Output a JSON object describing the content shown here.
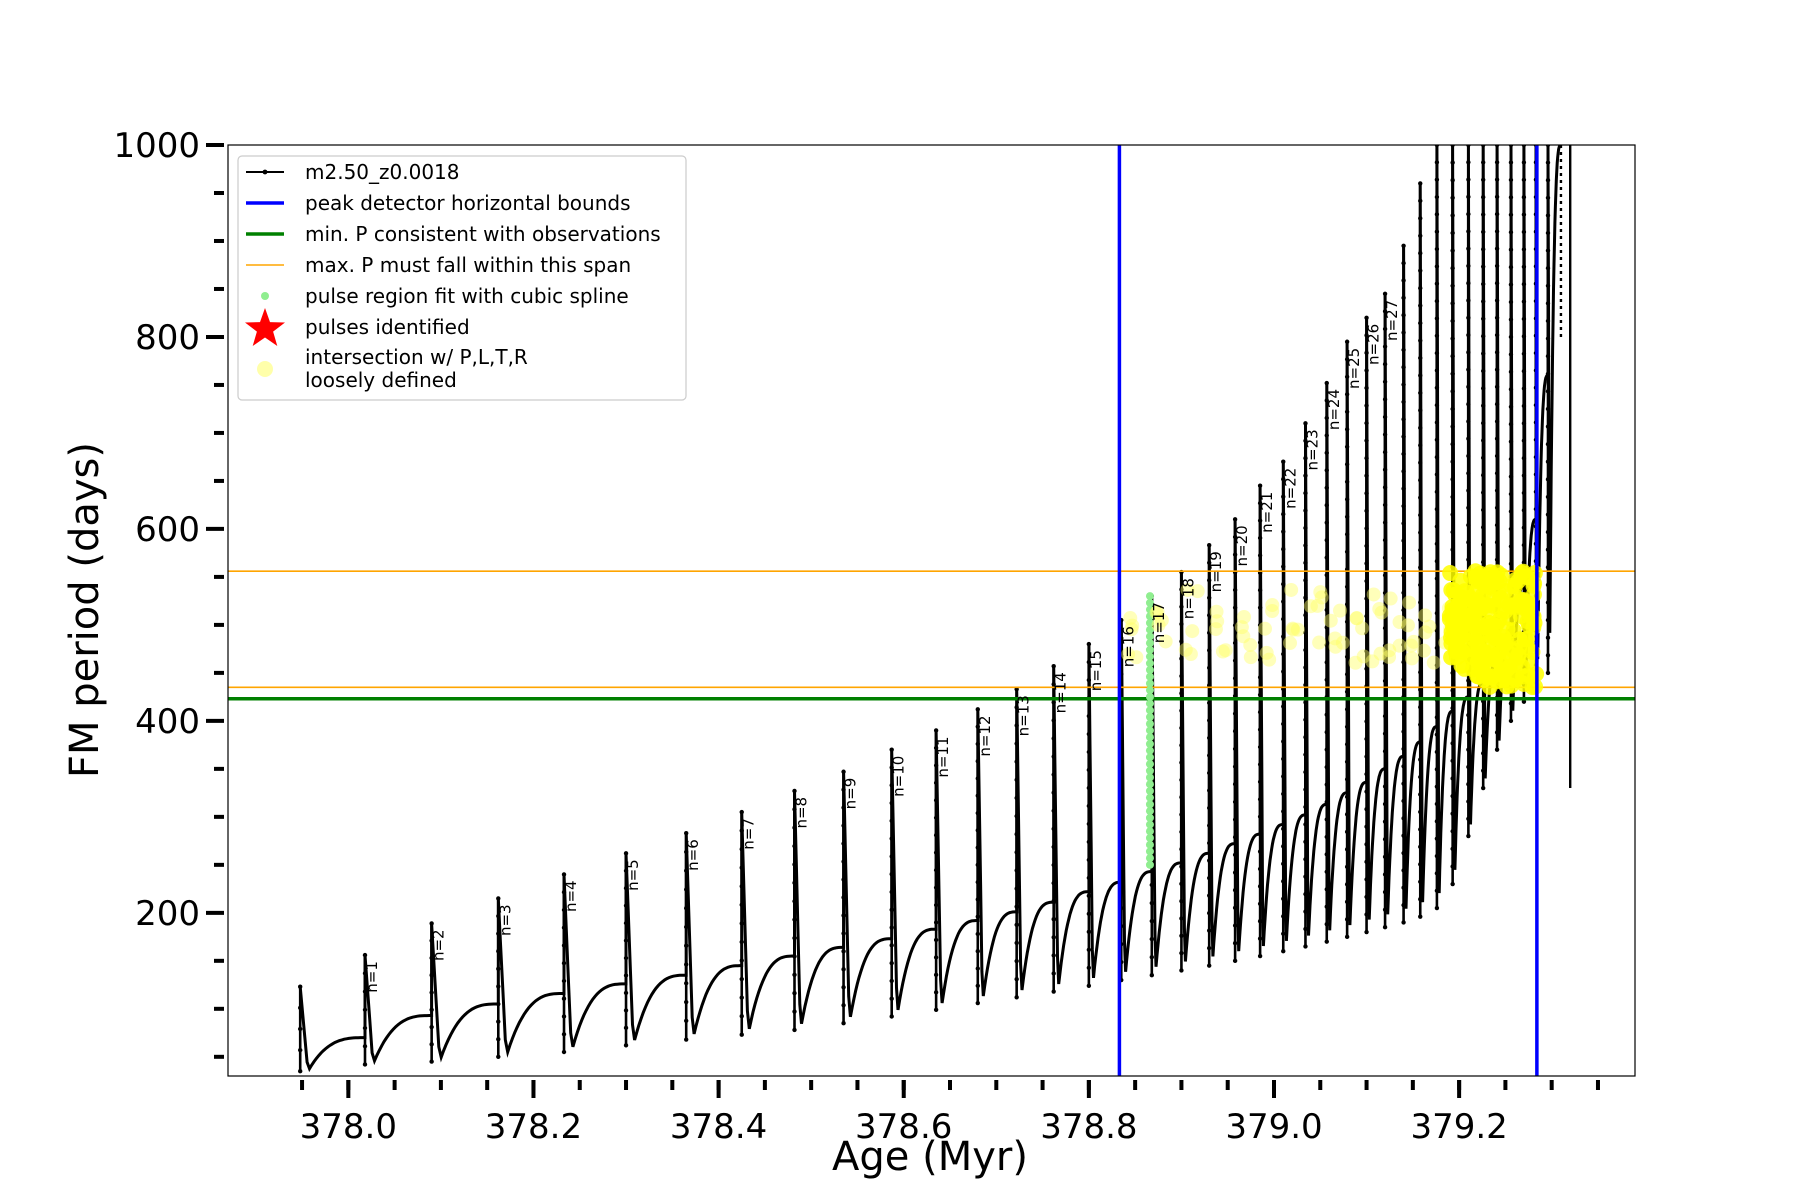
{
  "chart_data": {
    "type": "line",
    "xlabel": "Age (Myr)",
    "ylabel": "FM period (days)",
    "xlim": [
      377.87,
      379.39
    ],
    "ylim": [
      30,
      1000
    ],
    "xticks": [
      {
        "value": 378.0,
        "label": "378.0"
      },
      {
        "value": 378.2,
        "label": "378.2"
      },
      {
        "value": 378.4,
        "label": "378.4"
      },
      {
        "value": 378.6,
        "label": "378.6"
      },
      {
        "value": 378.8,
        "label": "378.8"
      },
      {
        "value": 379.0,
        "label": "379.0"
      },
      {
        "value": 379.2,
        "label": "379.2"
      }
    ],
    "yticks": [
      {
        "value": 200,
        "label": "200"
      },
      {
        "value": 400,
        "label": "400"
      },
      {
        "value": 600,
        "label": "600"
      },
      {
        "value": 800,
        "label": "800"
      },
      {
        "value": 1000,
        "label": "1000"
      }
    ],
    "grid": false,
    "legend_position": "top-left",
    "legend": [
      {
        "label": "m2.50_z0.0018",
        "kind": "line-marker",
        "color": "#000000"
      },
      {
        "label": "peak detector horizontal bounds",
        "kind": "line",
        "color": "#0000ff"
      },
      {
        "label": "min. P consistent with observations",
        "kind": "line",
        "color": "#008000"
      },
      {
        "label": "max. P must fall within this span",
        "kind": "thin-line",
        "color": "#ffa500"
      },
      {
        "label": "pulse region fit with cubic spline",
        "kind": "dot",
        "color": "#90ee90"
      },
      {
        "label": "pulses identified",
        "kind": "star",
        "color": "#ff0000"
      },
      {
        "label": "intersection w/ P,L,T,R",
        "label2": "loosely defined",
        "kind": "circle",
        "color": "#ffffaa"
      }
    ],
    "series": [
      {
        "name": "m2.50_z0.0018",
        "color": "#000000",
        "pulses": [
          {
            "age": 377.948,
            "peak": 123,
            "min": 35,
            "end": 70
          },
          {
            "age": 378.018,
            "peak": 156,
            "min": 42,
            "end": 93
          },
          {
            "age": 378.09,
            "peak": 189,
            "min": 45,
            "end": 105
          },
          {
            "age": 378.162,
            "peak": 215,
            "min": 50,
            "end": 116
          },
          {
            "age": 378.233,
            "peak": 240,
            "min": 55,
            "end": 126
          },
          {
            "age": 378.3,
            "peak": 262,
            "min": 62,
            "end": 135
          },
          {
            "age": 378.365,
            "peak": 283,
            "min": 68,
            "end": 145
          },
          {
            "age": 378.425,
            "peak": 305,
            "min": 73,
            "end": 155
          },
          {
            "age": 378.482,
            "peak": 327,
            "min": 78,
            "end": 164
          },
          {
            "age": 378.535,
            "peak": 347,
            "min": 85,
            "end": 173
          },
          {
            "age": 378.587,
            "peak": 370,
            "min": 92,
            "end": 183
          },
          {
            "age": 378.635,
            "peak": 390,
            "min": 99,
            "end": 192
          },
          {
            "age": 378.68,
            "peak": 412,
            "min": 106,
            "end": 201
          },
          {
            "age": 378.722,
            "peak": 433,
            "min": 112,
            "end": 211
          },
          {
            "age": 378.762,
            "peak": 457,
            "min": 118,
            "end": 222
          },
          {
            "age": 378.8,
            "peak": 480,
            "min": 124,
            "end": 232
          },
          {
            "age": 378.835,
            "peak": 505,
            "min": 130,
            "end": 243
          },
          {
            "age": 378.868,
            "peak": 530,
            "min": 135,
            "end": 252
          },
          {
            "age": 378.9,
            "peak": 555,
            "min": 140,
            "end": 262
          },
          {
            "age": 378.93,
            "peak": 583,
            "min": 145,
            "end": 272
          },
          {
            "age": 378.958,
            "peak": 610,
            "min": 150,
            "end": 282
          },
          {
            "age": 378.985,
            "peak": 645,
            "min": 155,
            "end": 292
          },
          {
            "age": 379.01,
            "peak": 670,
            "min": 160,
            "end": 302
          },
          {
            "age": 379.034,
            "peak": 710,
            "min": 165,
            "end": 313
          },
          {
            "age": 379.057,
            "peak": 752,
            "min": 170,
            "end": 325
          },
          {
            "age": 379.079,
            "peak": 795,
            "min": 175,
            "end": 336
          },
          {
            "age": 379.1,
            "peak": 820,
            "min": 180,
            "end": 350
          },
          {
            "age": 379.12,
            "peak": 845,
            "min": 185,
            "end": 363
          },
          {
            "age": 379.14,
            "peak": 895,
            "min": 190,
            "end": 378
          },
          {
            "age": 379.158,
            "peak": 960,
            "min": 196,
            "end": 394
          },
          {
            "age": 379.176,
            "peak": 1000,
            "min": 205,
            "end": 410
          },
          {
            "age": 379.193,
            "peak": 1000,
            "min": 230,
            "end": 425
          },
          {
            "age": 379.21,
            "peak": 1000,
            "min": 280,
            "end": 440
          },
          {
            "age": 379.226,
            "peak": 1000,
            "min": 330,
            "end": 462
          },
          {
            "age": 379.241,
            "peak": 1000,
            "min": 370,
            "end": 495
          },
          {
            "age": 379.256,
            "peak": 1000,
            "min": 400,
            "end": 540
          },
          {
            "age": 379.27,
            "peak": 1000,
            "min": 420,
            "end": 610
          },
          {
            "age": 379.283,
            "peak": 1000,
            "min": 440,
            "end": 760
          },
          {
            "age": 379.296,
            "peak": 1000,
            "min": 450,
            "end": 1000
          }
        ],
        "tail": [
          {
            "age": 379.31,
            "min": 800,
            "max": 1000
          },
          {
            "age": 379.32,
            "min": 330,
            "max": 1000
          }
        ]
      }
    ],
    "pulse_labels": [
      "n=1",
      "n=2",
      "n=3",
      "n=4",
      "n=5",
      "n=6",
      "n=7",
      "n=8",
      "n=9",
      "n=10",
      "n=11",
      "n=12",
      "n=13",
      "n=14",
      "n=15",
      "n=16",
      "n=17",
      "n=18",
      "n=19",
      "n=20",
      "n=21",
      "n=22",
      "n=23",
      "n=24",
      "n=25",
      "n=26",
      "n=27"
    ],
    "vertical_lines": [
      {
        "name": "peak detector horizontal bounds",
        "x": 378.833,
        "color": "#0000ff"
      },
      {
        "name": "peak detector horizontal bounds",
        "x": 379.284,
        "color": "#0000ff"
      }
    ],
    "horizontal_lines": [
      {
        "name": "min. P consistent with observations",
        "y": 423,
        "color": "#008000"
      },
      {
        "name": "max. P must fall within this span",
        "y": 435,
        "color": "#ffa500"
      },
      {
        "name": "max. P must fall within this span",
        "y": 556,
        "color": "#ffa500"
      }
    ],
    "spline_region": {
      "x": 378.866,
      "ymin": 250,
      "ymax": 530,
      "color": "#90ee90"
    },
    "intersection_points": {
      "color": "#ffff66",
      "x_start": 378.83,
      "x_end": 379.284,
      "ymin": 460,
      "ymax": 540,
      "dense_region": {
        "x_start": 379.19,
        "x_end": 379.284,
        "ymin": 435,
        "ymax": 556
      }
    }
  }
}
